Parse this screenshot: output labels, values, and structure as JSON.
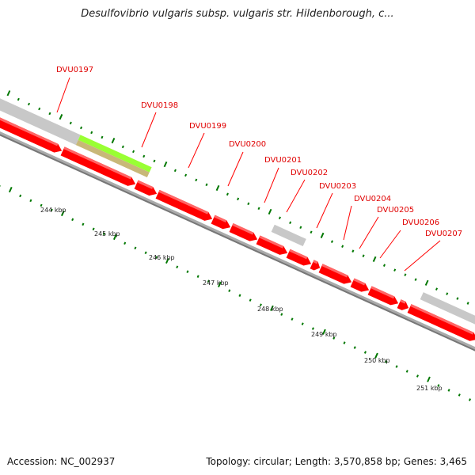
{
  "title": "Desulfovibrio vulgaris subsp. vulgaris str. Hildenborough, c...",
  "genes": [
    "DVU0197",
    "DVU0198",
    "DVU0199",
    "DVU0200",
    "DVU0201",
    "DVU0202",
    "DVU0203",
    "DVU0204",
    "DVU0205",
    "DVU0206",
    "DVU0207"
  ],
  "kbp_labels": [
    "244 kbp",
    "245 kbp",
    "246 kbp",
    "247 kbp",
    "248 kbp",
    "249 kbp",
    "250 kbp",
    "251 kbp"
  ],
  "footer": {
    "accession": "Accession: NC_002937",
    "summary": "Topology: circular; Length: 3,570,858 bp; Genes: 3,465"
  },
  "colors": {
    "gene": "#ff0000",
    "backbone": "#999999",
    "other_feature": "#c8c8c8",
    "highlight": "#99ff33",
    "highlight_shadow": "#c8b878",
    "tick": "#007700"
  }
}
